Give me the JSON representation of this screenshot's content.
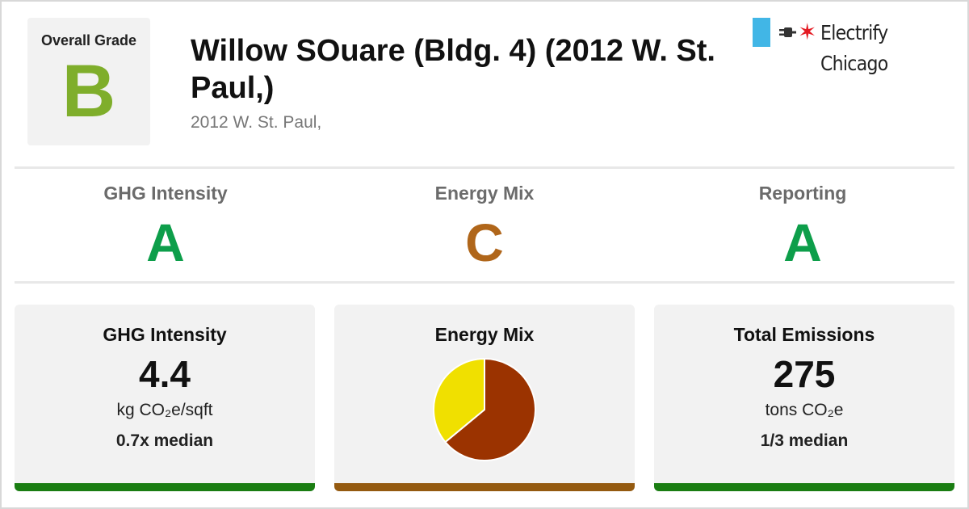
{
  "header": {
    "overall_label": "Overall Grade",
    "overall_grade": "B",
    "overall_color": "#7fae2b",
    "title": "Willow SOuare (Bldg. 4) (2012 W. St. Paul,)",
    "address": "2012 W. St. Paul,"
  },
  "logo": {
    "name": "Electrify Chicago",
    "flag_icon": "chicago-flag-icon",
    "plug_icon": "plug-icon",
    "star_icon": "chicago-star-icon",
    "star_glyph": "✶",
    "flag_color": "#41b6e6",
    "star_color": "#e41b23"
  },
  "grades": [
    {
      "label": "GHG Intensity",
      "grade": "A",
      "color": "#0d9e4a"
    },
    {
      "label": "Energy Mix",
      "grade": "C",
      "color": "#b0661a"
    },
    {
      "label": "Reporting",
      "grade": "A",
      "color": "#0d9e4a"
    }
  ],
  "cards": {
    "ghg": {
      "title": "GHG Intensity",
      "value": "4.4",
      "unit": "kg CO₂e/sqft",
      "median": "0.7x median",
      "bar_color": "#1a7d12"
    },
    "mix": {
      "title": "Energy Mix",
      "bar_color": "#945a10"
    },
    "emissions": {
      "title": "Total Emissions",
      "value": "275",
      "unit": "tons CO₂e",
      "median": "1/3 median",
      "bar_color": "#1a7d12"
    }
  },
  "chart_data": {
    "type": "pie",
    "title": "",
    "slices": [
      {
        "value": 0.64,
        "color": "#9b3300"
      },
      {
        "value": 0.36,
        "color": "#f0e000"
      }
    ]
  }
}
